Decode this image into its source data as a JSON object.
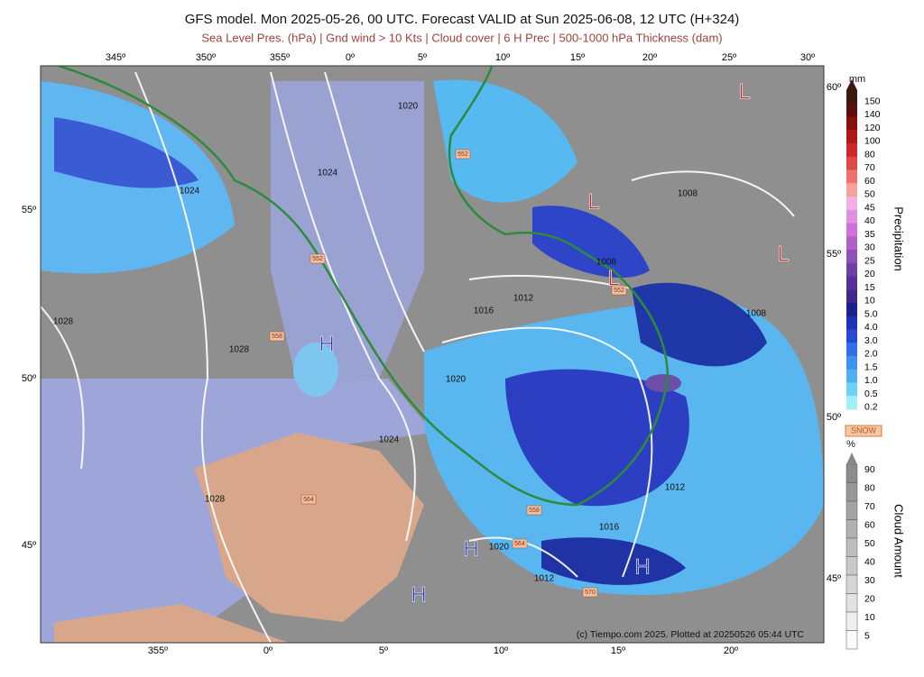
{
  "header": {
    "title": "GFS model. Mon 2025-05-26, 00 UTC. Forecast VALID at Sun 2025-06-08, 12 UTC (H+324)",
    "subtitle": "Sea Level Pres. (hPa) | Gnd wind > 10 Kts | Cloud cover | 6 H Prec | 500-1000 hPa Thickness (dam)"
  },
  "map": {
    "top_longitudes": [
      "345º",
      "350º",
      "355º",
      "0º",
      "5º",
      "10º",
      "15º",
      "20º",
      "25º",
      "30º"
    ],
    "bottom_longitudes": [
      "355º",
      "0º",
      "5º",
      "10º",
      "15º",
      "20º"
    ],
    "left_latitudes": [
      "55º",
      "50º",
      "45º"
    ],
    "right_latitudes": [
      "60º",
      "55º",
      "50º",
      "45º"
    ],
    "isobar_labels": [
      "1020",
      "1024",
      "1024",
      "1028",
      "1028",
      "1020",
      "1024",
      "1016",
      "1012",
      "1008",
      "1008",
      "1008",
      "1012",
      "1016",
      "1020",
      "1012",
      "1028"
    ],
    "pressure_centers": [
      "H",
      "H",
      "H",
      "H",
      "L",
      "L",
      "L",
      "L"
    ],
    "thickness_labels": [
      "552",
      "552",
      "552",
      "558",
      "564",
      "558",
      "564",
      "570"
    ],
    "credit": "(c) Tiempo.com 2025. Plotted at 20250526 05:44 UTC"
  },
  "legend": {
    "precip_unit": "mm",
    "precip_title": "Precipitation",
    "precip_levels": [
      "150",
      "140",
      "120",
      "100",
      "80",
      "70",
      "60",
      "50",
      "45",
      "40",
      "35",
      "30",
      "25",
      "20",
      "15",
      "10",
      "5.0",
      "4.0",
      "3.0",
      "2.0",
      "1.5",
      "1.0",
      "0.5",
      "0.2"
    ],
    "snow": "SNOW",
    "cloud_unit": "%",
    "cloud_title": "Cloud Amount",
    "cloud_levels": [
      "90",
      "80",
      "70",
      "60",
      "50",
      "40",
      "30",
      "20",
      "10",
      "5"
    ]
  }
}
